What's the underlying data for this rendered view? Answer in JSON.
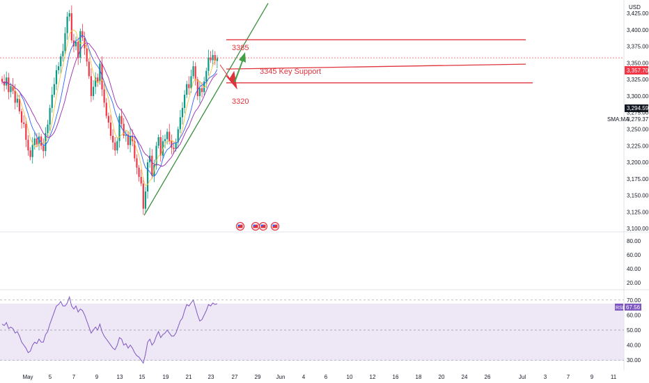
{
  "currency": "USD",
  "colors": {
    "up": "#089981",
    "down": "#f23645",
    "ma_blue": "#2962ff",
    "ma_purple": "#9c27b0",
    "ma_yellow": "#f5c242",
    "annotation": "#e0323c",
    "trend": "#388e3c",
    "rsi": "#7e57c2"
  },
  "chart_data": [
    {
      "type": "candlestick",
      "ylim": [
        3095,
        3445
      ],
      "y_ticks": [
        "3,425.00",
        "3,400.00",
        "3,375.00",
        "3,350.00",
        "3,325.00",
        "3,300.00",
        "3,275.00",
        "3,250.00",
        "3,225.00",
        "3,200.00",
        "3,175.00",
        "3,150.00",
        "3,125.00",
        "3,100.00"
      ],
      "x_ticks": [
        "May",
        "5",
        "7",
        "9",
        "13",
        "15",
        "19",
        "21",
        "23",
        "27",
        "29",
        "Jun",
        "4",
        "6",
        "10",
        "12",
        "16",
        "18",
        "20",
        "24",
        "26",
        "Jul",
        "3",
        "7",
        "9",
        "11"
      ],
      "price_labels": {
        "current": "3,357.70",
        "last": "3,294.59",
        "sma_value": "3,279.37",
        "sma_label": "SMA:MA"
      },
      "annotations": {
        "resistance": "3385",
        "support": "3345 Key Support",
        "lower": "3320"
      },
      "levels": [
        3385,
        3345,
        3320
      ],
      "current_price": 3357.7,
      "close": [
        3322,
        3316,
        3328,
        3306,
        3315,
        3308,
        3290,
        3296,
        3277,
        3260,
        3258,
        3234,
        3218,
        3208,
        3226,
        3236,
        3227,
        3239,
        3225,
        3217,
        3244,
        3257,
        3282,
        3302,
        3318,
        3339,
        3345,
        3360,
        3368,
        3395,
        3420,
        3425,
        3384,
        3375,
        3382,
        3358,
        3398,
        3388,
        3372,
        3352,
        3330,
        3300,
        3314,
        3328,
        3322,
        3349,
        3310,
        3290,
        3270,
        3260,
        3240,
        3230,
        3218,
        3232,
        3270,
        3258,
        3240,
        3242,
        3226,
        3240,
        3232,
        3206,
        3192,
        3178,
        3168,
        3130,
        3156,
        3200,
        3210,
        3180,
        3196,
        3225,
        3238,
        3210,
        3232,
        3235,
        3246,
        3232,
        3222,
        3220,
        3230,
        3250,
        3268,
        3282,
        3302,
        3318,
        3312,
        3330,
        3345,
        3325,
        3300,
        3312,
        3306,
        3322,
        3338,
        3358,
        3354,
        3362,
        3353,
        3357.7
      ],
      "rsi": {
        "ylim": [
          25,
          75
        ],
        "ticks": [
          "70.00",
          "60.00",
          "50.00",
          "40.00",
          "30.00"
        ],
        "value_label": "67.56",
        "label": "RSI",
        "levels": [
          70,
          50,
          30
        ],
        "values": [
          54,
          53,
          55,
          51,
          52,
          51,
          48,
          49,
          46,
          42,
          40,
          38,
          35,
          36,
          40,
          42,
          41,
          44,
          42,
          42,
          47,
          49,
          54,
          58,
          62,
          66,
          67,
          69,
          66,
          66,
          68,
          72,
          66,
          64,
          66,
          62,
          64,
          63,
          60,
          56,
          52,
          48,
          50,
          52,
          50,
          54,
          49,
          46,
          44,
          42,
          40,
          38,
          37,
          40,
          45,
          44,
          40,
          41,
          38,
          40,
          38,
          35,
          33,
          32,
          30,
          28,
          34,
          42,
          44,
          40,
          42,
          46,
          49,
          45,
          47,
          48,
          50,
          48,
          46,
          46,
          48,
          52,
          56,
          58,
          63,
          67,
          66,
          68,
          70,
          65,
          60,
          56,
          57,
          60,
          63,
          67,
          66,
          68,
          67,
          67.56
        ]
      },
      "lower_axis": {
        "ticks": [
          "80.00",
          "60.00",
          "40.00",
          "20.00"
        ]
      }
    }
  ]
}
